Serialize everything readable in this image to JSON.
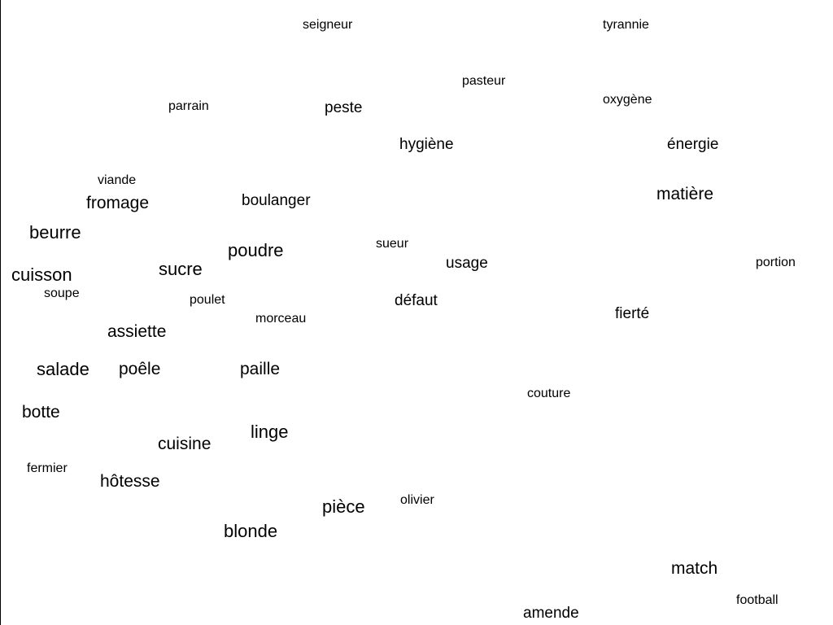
{
  "words": {
    "seigneur": "seigneur",
    "tyrannie": "tyrannie",
    "pasteur": "pasteur",
    "parrain": "parrain",
    "peste": "peste",
    "oxygene": "oxygène",
    "hygiene": "hygiène",
    "energie": "énergie",
    "viande": "viande",
    "fromage": "fromage",
    "boulanger": "boulanger",
    "matiere": "matière",
    "beurre": "beurre",
    "poudre": "poudre",
    "sueur": "sueur",
    "usage": "usage",
    "portion": "portion",
    "cuisson": "cuisson",
    "sucre": "sucre",
    "soupe": "soupe",
    "poulet": "poulet",
    "defaut": "défaut",
    "fierte": "fierté",
    "morceau": "morceau",
    "assiette": "assiette",
    "salade": "salade",
    "poele": "poêle",
    "paille": "paille",
    "couture": "couture",
    "botte": "botte",
    "linge": "linge",
    "cuisine": "cuisine",
    "fermier": "fermier",
    "hotesse": "hôtesse",
    "olivier": "olivier",
    "piece": "pièce",
    "blonde": "blonde",
    "match": "match",
    "football": "football",
    "amende": "amende"
  }
}
